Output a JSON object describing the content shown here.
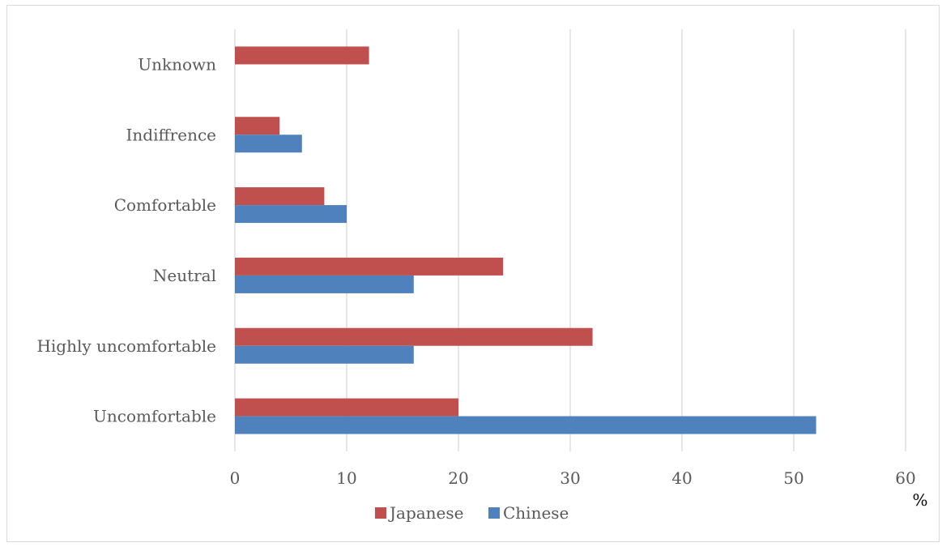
{
  "chart_data": {
    "type": "bar",
    "orientation": "horizontal",
    "categories": [
      "Uncomfortable",
      "Highly uncomfortable",
      "Neutral",
      "Comfortable",
      "Indiffrence",
      "Unknown"
    ],
    "series": [
      {
        "name": "Japanese",
        "color": "#c0504d",
        "values": [
          20,
          32,
          24,
          8,
          4,
          12
        ]
      },
      {
        "name": "Chinese",
        "color": "#4f81bd",
        "values": [
          52,
          16,
          16,
          10,
          6,
          0
        ]
      }
    ],
    "title": "",
    "xlabel": "%",
    "ylabel": "",
    "xlim": [
      0,
      60
    ],
    "xticks": [
      0,
      10,
      20,
      30,
      40,
      50,
      60
    ],
    "grid": true,
    "legend_position": "bottom"
  }
}
